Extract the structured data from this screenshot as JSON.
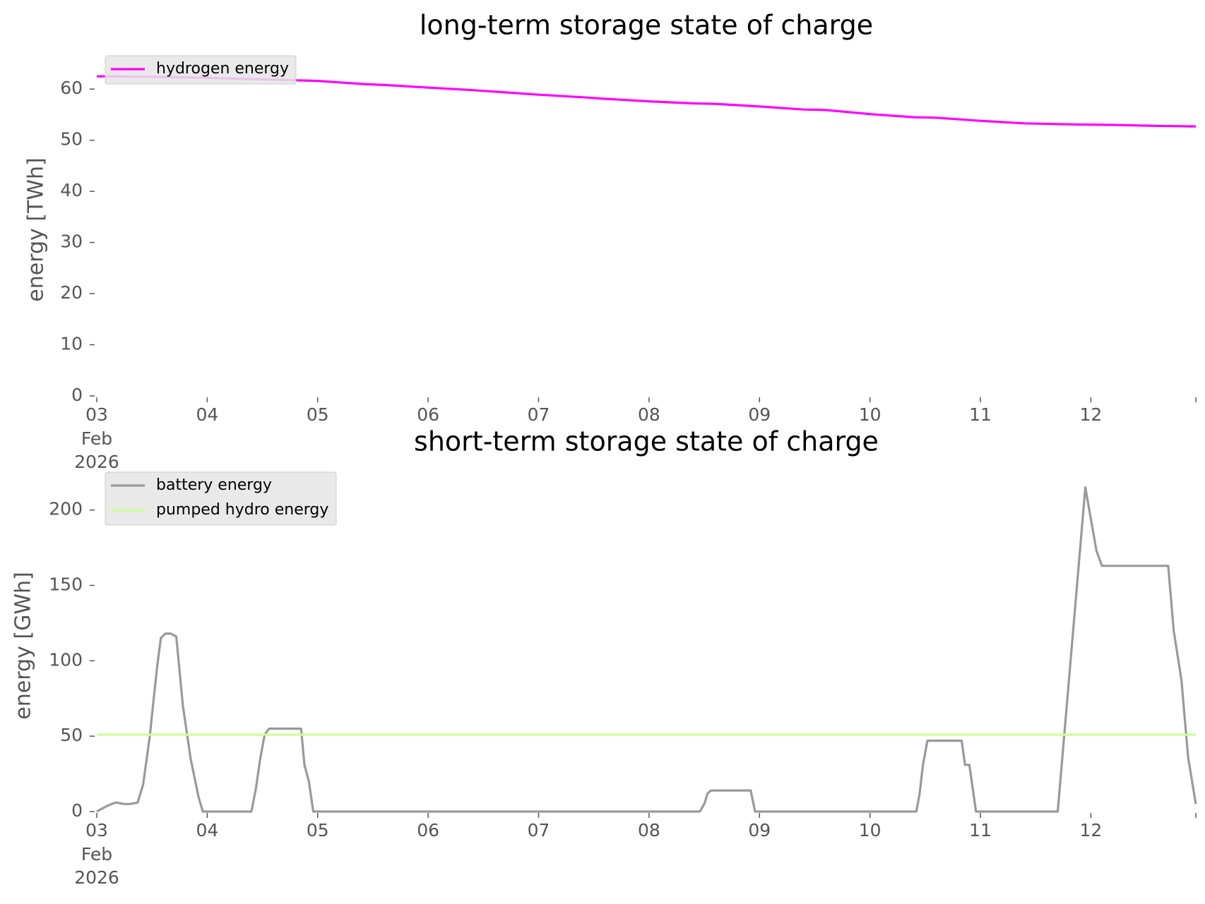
{
  "chart_data": [
    {
      "type": "line",
      "title": "long-term storage state of charge",
      "ylabel": "energy [TWh]",
      "xlabel": "",
      "x_unit": "days of Feb 2026",
      "xlim": [
        3,
        12.95
      ],
      "ylim": [
        0,
        65
      ],
      "yticks": [
        0,
        10,
        20,
        30,
        40,
        50,
        60
      ],
      "xticks": [
        {
          "value": 3,
          "label": "03",
          "sub": [
            "Feb",
            "2026"
          ]
        },
        {
          "value": 4,
          "label": "04"
        },
        {
          "value": 5,
          "label": "05"
        },
        {
          "value": 6,
          "label": "06"
        },
        {
          "value": 7,
          "label": "07"
        },
        {
          "value": 8,
          "label": "08"
        },
        {
          "value": 9,
          "label": "09"
        },
        {
          "value": 10,
          "label": "10"
        },
        {
          "value": 11,
          "label": "11"
        },
        {
          "value": 12,
          "label": "12"
        }
      ],
      "grid": false,
      "legend_position": "top-left",
      "series": [
        {
          "name": "hydrogen energy",
          "color": "#ff00ff",
          "x": [
            3.0,
            3.5,
            4.0,
            4.5,
            5.0,
            5.2,
            5.4,
            5.6,
            6.0,
            6.4,
            6.8,
            7.0,
            7.4,
            7.6,
            8.0,
            8.4,
            8.6,
            9.0,
            9.4,
            9.6,
            10.0,
            10.4,
            10.6,
            11.0,
            11.4,
            11.8,
            12.2,
            12.6,
            12.95
          ],
          "values": [
            62.5,
            62.4,
            62.2,
            61.9,
            61.6,
            61.3,
            61.0,
            60.8,
            60.3,
            59.8,
            59.2,
            58.9,
            58.4,
            58.1,
            57.6,
            57.2,
            57.1,
            56.6,
            56.0,
            55.9,
            55.1,
            54.5,
            54.4,
            53.8,
            53.3,
            53.1,
            53.0,
            52.8,
            52.7
          ]
        }
      ]
    },
    {
      "type": "line",
      "title": "short-term storage state of charge",
      "ylabel": "energy [GWh]",
      "xlabel": "",
      "x_unit": "days of Feb 2026",
      "xlim": [
        3,
        12.95
      ],
      "ylim": [
        0,
        220
      ],
      "yticks": [
        0,
        50,
        100,
        150,
        200
      ],
      "xticks": [
        {
          "value": 3,
          "label": "03",
          "sub": [
            "Feb",
            "2026"
          ]
        },
        {
          "value": 4,
          "label": "04"
        },
        {
          "value": 5,
          "label": "05"
        },
        {
          "value": 6,
          "label": "06"
        },
        {
          "value": 7,
          "label": "07"
        },
        {
          "value": 8,
          "label": "08"
        },
        {
          "value": 9,
          "label": "09"
        },
        {
          "value": 10,
          "label": "10"
        },
        {
          "value": 11,
          "label": "11"
        },
        {
          "value": 12,
          "label": "12"
        }
      ],
      "grid": false,
      "legend_position": "top-left",
      "series": [
        {
          "name": "battery energy",
          "color": "#999999",
          "x": [
            3.0,
            3.05,
            3.1,
            3.17,
            3.25,
            3.3,
            3.37,
            3.42,
            3.48,
            3.52,
            3.55,
            3.58,
            3.62,
            3.67,
            3.72,
            3.78,
            3.85,
            3.92,
            3.96,
            4.4,
            4.44,
            4.48,
            4.52,
            4.56,
            4.85,
            4.88,
            4.92,
            4.96,
            8.46,
            8.5,
            8.53,
            8.56,
            8.92,
            8.96,
            10.42,
            10.45,
            10.48,
            10.52,
            10.83,
            10.86,
            10.9,
            10.96,
            11.7,
            11.95,
            12.05,
            12.1,
            12.2,
            12.7,
            12.75,
            12.82,
            12.88,
            12.95
          ],
          "values": [
            0,
            2,
            4,
            6,
            5,
            5,
            6,
            18,
            50,
            78,
            98,
            115,
            118,
            118,
            116,
            70,
            35,
            10,
            0,
            0,
            15,
            35,
            51,
            55,
            55,
            31,
            20,
            0,
            0,
            5,
            12,
            14,
            14,
            0,
            0,
            12,
            31,
            47,
            47,
            31,
            31,
            0,
            0,
            215,
            173,
            163,
            163,
            163,
            120,
            87,
            36,
            5
          ]
        },
        {
          "name": "pumped hydro energy",
          "color": "#ccff99",
          "x": [
            3.0,
            12.95
          ],
          "values": [
            51,
            51
          ]
        }
      ]
    }
  ]
}
